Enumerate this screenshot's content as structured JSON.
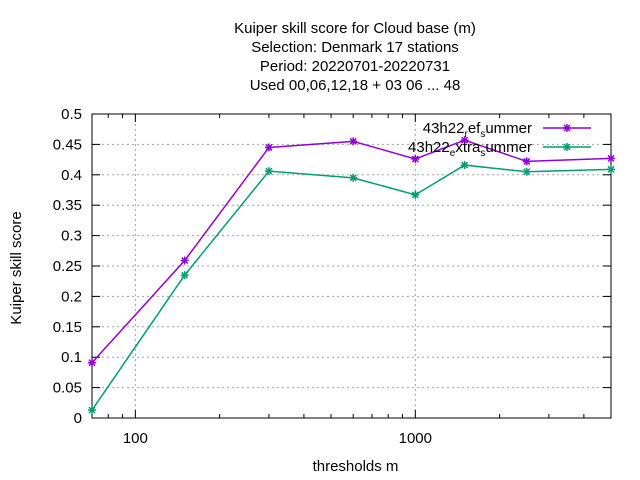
{
  "chart_data": {
    "type": "line",
    "title_lines": [
      "Kuiper skill score  for Cloud base (m)",
      "Selection: Denmark     17 stations",
      "Period: 20220701-20220731",
      "Used  00,06,12,18  + 03 06 ... 48"
    ],
    "xlabel": "thresholds m",
    "ylabel": "Kuiper skill score",
    "x_scale": "log",
    "xlim": [
      70,
      5000
    ],
    "ylim": [
      0,
      0.5
    ],
    "x_ticks": [
      100,
      1000
    ],
    "x_tick_labels": [
      "100",
      "1000"
    ],
    "y_ticks": [
      0,
      0.05,
      0.1,
      0.15,
      0.2,
      0.25,
      0.3,
      0.35,
      0.4,
      0.45,
      0.5
    ],
    "y_tick_labels": [
      "0",
      "0.05",
      "0.1",
      "0.15",
      "0.2",
      "0.25",
      "0.3",
      "0.35",
      "0.4",
      "0.45",
      "0.5"
    ],
    "grid": true,
    "legend_position": "top-right",
    "series": [
      {
        "name": "43h22_ref_summer",
        "legend_parts": [
          {
            "text": "43h22",
            "sub": false
          },
          {
            "text": "r",
            "sub": true
          },
          {
            "text": "ef",
            "sub": false
          },
          {
            "text": "s",
            "sub": true
          },
          {
            "text": "ummer",
            "sub": false
          }
        ],
        "color": "#9400d3",
        "x": [
          70,
          150,
          300,
          600,
          1000,
          1500,
          2500,
          5000
        ],
        "y": [
          0.091,
          0.259,
          0.445,
          0.455,
          0.426,
          0.457,
          0.422,
          0.427
        ]
      },
      {
        "name": "43h22_extra_summer",
        "legend_parts": [
          {
            "text": "43h22",
            "sub": false
          },
          {
            "text": "e",
            "sub": true
          },
          {
            "text": "xtra",
            "sub": false
          },
          {
            "text": "s",
            "sub": true
          },
          {
            "text": "ummer",
            "sub": false
          }
        ],
        "color": "#009e73",
        "x": [
          70,
          150,
          300,
          600,
          1000,
          1500,
          2500,
          5000
        ],
        "y": [
          0.013,
          0.235,
          0.406,
          0.395,
          0.367,
          0.416,
          0.405,
          0.409
        ]
      }
    ]
  }
}
